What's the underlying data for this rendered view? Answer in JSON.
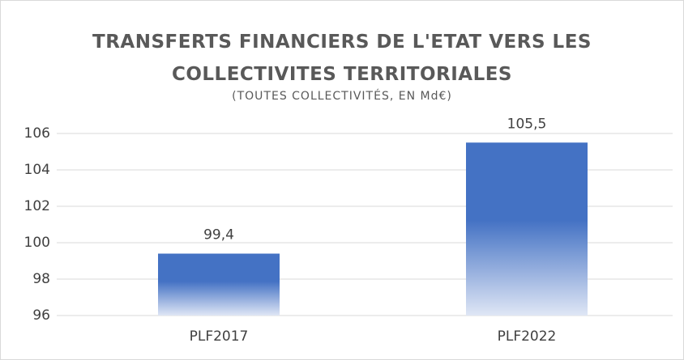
{
  "chart_data": {
    "type": "bar",
    "title": "TRANSFERTS FINANCIERS DE L'ETAT VERS LES COLLECTIVITES TERRITORIALES",
    "subtitle": "(TOUTES COLLECTIVITÉS, EN Md€)",
    "categories": [
      "PLF2017",
      "PLF2022"
    ],
    "values": [
      99.4,
      105.5
    ],
    "value_labels": [
      "99,4",
      "105,5"
    ],
    "color": "#4472c4",
    "ylim": [
      96,
      106
    ],
    "yticks": [
      96,
      98,
      100,
      102,
      104,
      106
    ],
    "grid": true
  }
}
